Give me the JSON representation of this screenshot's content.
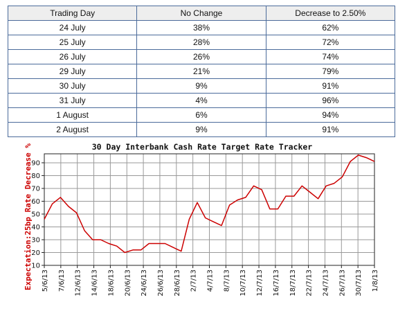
{
  "table": {
    "headers": [
      "Trading Day",
      "No Change",
      "Decrease to 2.50%"
    ],
    "rows": [
      [
        "24 July",
        "38%",
        "62%"
      ],
      [
        "25 July",
        "28%",
        "72%"
      ],
      [
        "26 July",
        "26%",
        "74%"
      ],
      [
        "29 July",
        "21%",
        "79%"
      ],
      [
        "30 July",
        "9%",
        "91%"
      ],
      [
        "31 July",
        "4%",
        "96%"
      ],
      [
        "1 August",
        "6%",
        "94%"
      ],
      [
        "2 August",
        "9%",
        "91%"
      ]
    ]
  },
  "chart_data": {
    "type": "line",
    "title": "30 Day Interbank Cash Rate Target Rate Tracker",
    "xlabel": "",
    "ylabel": "Expectation:25bp Rate Decrease %",
    "ylim": [
      10,
      97
    ],
    "yticks": [
      10,
      20,
      30,
      40,
      50,
      60,
      70,
      80,
      90
    ],
    "grid": true,
    "line_color": "#cc0000",
    "x_tick_labels": [
      "5/6/13",
      "7/6/13",
      "12/6/13",
      "14/6/13",
      "18/6/13",
      "20/6/13",
      "24/6/13",
      "26/6/13",
      "28/6/13",
      "2/7/13",
      "4/7/13",
      "8/7/13",
      "10/7/13",
      "12/7/13",
      "16/7/13",
      "18/7/13",
      "22/7/13",
      "24/7/13",
      "26/7/13",
      "30/7/13",
      "1/8/13"
    ],
    "series": [
      {
        "values": [
          46,
          58,
          63,
          56,
          51,
          37,
          30,
          30,
          27,
          25,
          20,
          22,
          22,
          27,
          27,
          27,
          24,
          21,
          46,
          59,
          47,
          44,
          41,
          57,
          61,
          63,
          72,
          69,
          54,
          54,
          64,
          64,
          72,
          67,
          62,
          72,
          74,
          79,
          91,
          96,
          94,
          91
        ]
      }
    ]
  }
}
